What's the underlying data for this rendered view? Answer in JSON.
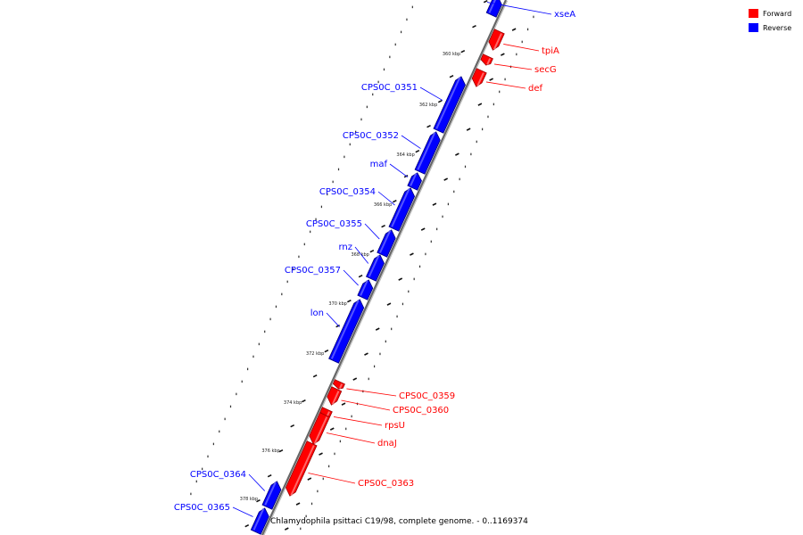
{
  "caption": "Chlamydophila psittaci C19/98, complete genome. - 0..1169374",
  "colors": {
    "forward": "#ff0000",
    "reverse": "#0000ff",
    "backbone": "#888888"
  },
  "legend": [
    {
      "label": "Forward",
      "color": "#ff0000"
    },
    {
      "label": "Reverse",
      "color": "#0000ff"
    }
  ],
  "tick_labels": [
    "360 kbp",
    "362 kbp",
    "364 kbp",
    "366 kbp",
    "368 kbp",
    "370 kbp",
    "372 kbp",
    "374 kbp",
    "376 kbp",
    "378 kbp"
  ],
  "genes": [
    {
      "name": "xseA",
      "strand": "reverse"
    },
    {
      "name": "tpiA",
      "strand": "forward"
    },
    {
      "name": "secG",
      "strand": "forward"
    },
    {
      "name": "def",
      "strand": "forward"
    },
    {
      "name": "CPS0C_0351",
      "strand": "reverse"
    },
    {
      "name": "CPS0C_0352",
      "strand": "reverse"
    },
    {
      "name": "maf",
      "strand": "reverse"
    },
    {
      "name": "CPS0C_0354",
      "strand": "reverse"
    },
    {
      "name": "CPS0C_0355",
      "strand": "reverse"
    },
    {
      "name": "rnz",
      "strand": "reverse"
    },
    {
      "name": "CPS0C_0357",
      "strand": "reverse"
    },
    {
      "name": "lon",
      "strand": "reverse"
    },
    {
      "name": "CPS0C_0359",
      "strand": "forward"
    },
    {
      "name": "CPS0C_0360",
      "strand": "forward"
    },
    {
      "name": "rpsU",
      "strand": "forward"
    },
    {
      "name": "dnaJ",
      "strand": "forward"
    },
    {
      "name": "CPS0C_0363",
      "strand": "forward"
    },
    {
      "name": "CPS0C_0364",
      "strand": "reverse"
    },
    {
      "name": "CPS0C_0365",
      "strand": "reverse"
    }
  ]
}
